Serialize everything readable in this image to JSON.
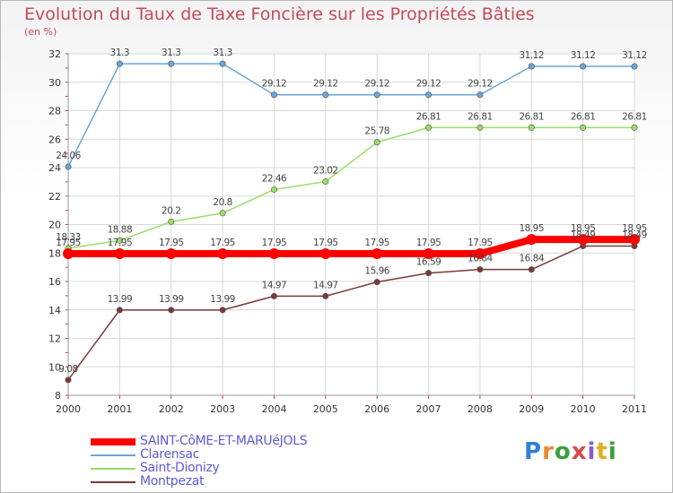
{
  "chart_data": {
    "type": "line",
    "title": "Evolution du Taux de Taxe Foncière sur les Propriétés Bâties",
    "ylabel": "(en %)",
    "xlabel": "",
    "ylim": [
      8,
      32
    ],
    "yticks": [
      8,
      10,
      12,
      14,
      16,
      18,
      20,
      22,
      24,
      26,
      28,
      30,
      32
    ],
    "x": [
      "2000",
      "2001",
      "2002",
      "2003",
      "2004",
      "2005",
      "2006",
      "2007",
      "2008",
      "2009",
      "2010",
      "2011"
    ],
    "series": [
      {
        "name": "SAINT-CôME-ET-MARUéJOLS",
        "color": "#ff0000",
        "values": [
          17.95,
          17.95,
          17.95,
          17.95,
          17.95,
          17.95,
          17.95,
          17.95,
          17.95,
          18.95,
          18.95,
          18.95
        ],
        "labels": [
          "17.95",
          "17.95",
          "17.95",
          "17.95",
          "17.95",
          "17.95",
          "17.95",
          "17.95",
          "17.95",
          "18.95",
          "18.95",
          "18.95"
        ]
      },
      {
        "name": "Clarensac",
        "color": "#6aa5d8",
        "values": [
          24.06,
          31.3,
          31.3,
          31.3,
          29.12,
          29.12,
          29.12,
          29.12,
          29.12,
          31.12,
          31.12,
          31.12
        ],
        "labels": [
          "24.06",
          "31.3",
          "31.3",
          "31.3",
          "29.12",
          "29.12",
          "29.12",
          "29.12",
          "29.12",
          "31.12",
          "31.12",
          "31.12"
        ]
      },
      {
        "name": "Saint-Dionizy",
        "color": "#99dd66",
        "values": [
          18.33,
          18.88,
          20.2,
          20.8,
          22.46,
          23.02,
          25.78,
          26.81,
          26.81,
          26.81,
          26.81,
          26.81
        ],
        "labels": [
          "18.33",
          "18.88",
          "20.2",
          "20.8",
          "22.46",
          "23.02",
          "25.78",
          "26.81",
          "26.81",
          "26.81",
          "26.81",
          "26.81"
        ]
      },
      {
        "name": "Montpezat",
        "color": "#7a3a3a",
        "values": [
          9.08,
          13.99,
          13.99,
          13.99,
          14.97,
          14.97,
          15.96,
          16.59,
          16.84,
          16.84,
          18.49,
          18.49
        ],
        "labels": [
          "9.08",
          "13.99",
          "13.99",
          "13.99",
          "14.97",
          "14.97",
          "15.96",
          "16.59",
          "16.84",
          "16.84",
          "18.49",
          "18.49"
        ]
      }
    ]
  },
  "branding": {
    "logo_text": "Proxiti"
  }
}
